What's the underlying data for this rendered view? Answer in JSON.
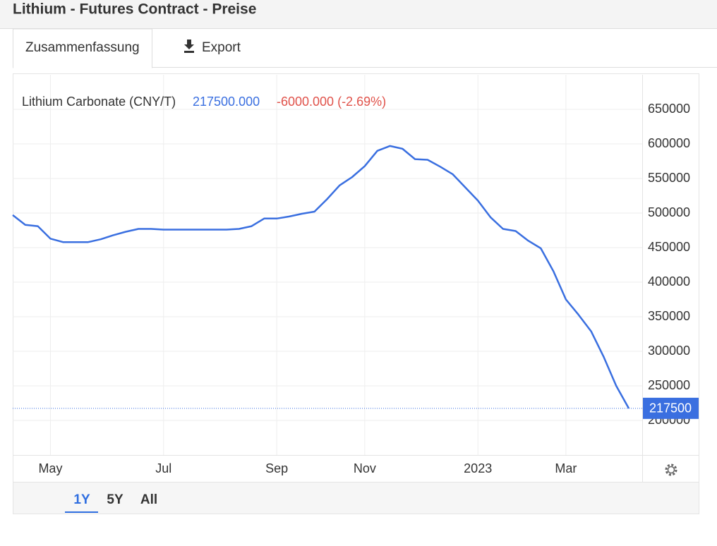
{
  "header": {
    "title": "Lithium - Futures Contract - Preise"
  },
  "tabs": [
    "Zusammenfassung",
    "Export"
  ],
  "ranges": [
    "1Y",
    "5Y",
    "All"
  ],
  "chart_data": {
    "type": "line",
    "categories": [
      null,
      null,
      null,
      "May",
      null,
      null,
      null,
      null,
      null,
      null,
      null,
      null,
      "Jul",
      null,
      null,
      null,
      null,
      null,
      null,
      null,
      null,
      "Sep",
      null,
      null,
      null,
      null,
      null,
      null,
      "Nov",
      null,
      null,
      null,
      null,
      null,
      null,
      null,
      null,
      "2023",
      null,
      null,
      null,
      null,
      null,
      null,
      "Mar",
      null,
      null,
      null,
      null,
      null
    ],
    "series": [
      {
        "name": "Lithium Carbonate (CNY/T)",
        "color": "#3a6fe0",
        "values": [
          497000,
          483000,
          481000,
          463000,
          458000,
          458000,
          458000,
          462000,
          468000,
          473000,
          477000,
          477000,
          476000,
          476000,
          476000,
          476000,
          476000,
          476000,
          477000,
          481000,
          492000,
          492000,
          495000,
          499000,
          502000,
          520000,
          540000,
          552000,
          568000,
          590000,
          597000,
          593000,
          578000,
          577000,
          567000,
          556000,
          537000,
          518000,
          494000,
          477000,
          474000,
          460000,
          449000,
          416000,
          375000,
          353000,
          329000,
          292000,
          250000,
          217500
        ]
      }
    ],
    "legend_value": "217500.000",
    "legend_change": "-6000.000 (-2.69%)",
    "ylim": [
      150000,
      700000
    ],
    "yticks": [
      200000,
      250000,
      300000,
      350000,
      400000,
      450000,
      500000,
      550000,
      600000,
      650000
    ],
    "grid": true
  }
}
